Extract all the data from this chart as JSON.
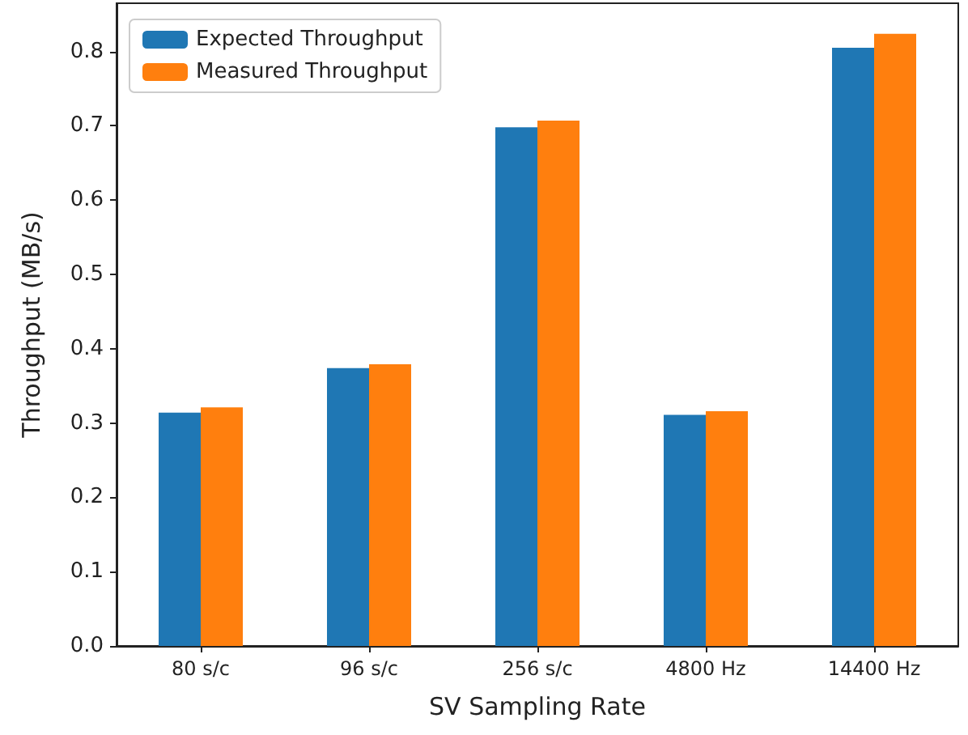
{
  "chart_data": {
    "type": "bar",
    "xlabel": "SV Sampling Rate",
    "ylabel": "Throughput (MB/s)",
    "categories": [
      "80 s/c",
      "96 s/c",
      "256 s/c",
      "4800 Hz",
      "14400 Hz"
    ],
    "series": [
      {
        "name": "Expected Throughput",
        "color": "#1f77b4",
        "values": [
          0.314,
          0.374,
          0.698,
          0.311,
          0.805
        ]
      },
      {
        "name": "Measured Throughput",
        "color": "#ff7f0e",
        "values": [
          0.321,
          0.379,
          0.707,
          0.316,
          0.824
        ]
      }
    ],
    "ylim": [
      0,
      0.865
    ],
    "yticks": [
      {
        "value": 0,
        "label": "0.0"
      },
      0.1,
      0.2,
      0.3,
      0.4,
      0.5,
      0.6,
      0.7,
      0.8
    ],
    "grid": false,
    "legend": "top left"
  }
}
